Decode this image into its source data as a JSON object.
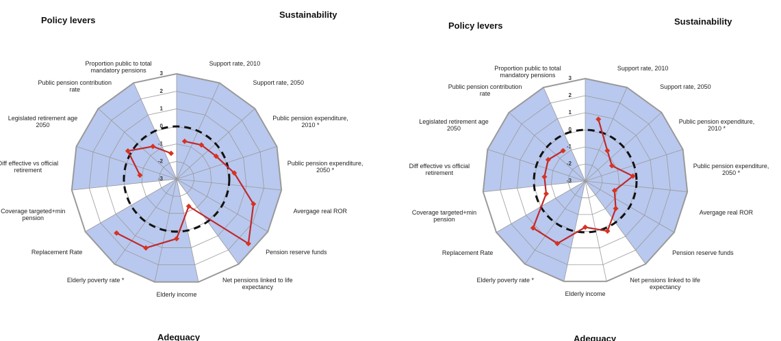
{
  "chart_data": [
    {
      "type": "radar",
      "group_labels": [
        "Policy levers",
        "Sustainability",
        "Adequacy"
      ],
      "categories": [
        "Support rate, 2010",
        "Support rate, 2050",
        "Public pension expenditure, 2010 *",
        "Public pension expenditure, 2050 *",
        "Avergage real ROR",
        "Pension reserve funds",
        "Net pensions linked to life expectancy",
        "Elderly income",
        "Elderly poverty rate *",
        "Replacement Rate",
        "Coverage targeted+min pension",
        "Diff effective vs official retirement",
        "Legislated retirement age 2050",
        "Public pension contribution rate",
        "Proportion public to total mandatory pensions"
      ],
      "values": [
        -0.8,
        -0.6,
        -0.4,
        0.3,
        1.6,
        2.5,
        -1.3,
        0.4,
        1.3,
        1.6,
        null,
        -0.9,
        0.2,
        -0.7,
        -1.5
      ],
      "sector_colors": [
        "#b9c8ee",
        "#b9c8ee",
        "#b9c8ee",
        "#b9c8ee",
        "#b9c8ee",
        "#b9c8ee",
        "#ffffff",
        "#b9c8ee",
        "#b9c8ee",
        "#b9c8ee",
        "#ffffff",
        "#b9c8ee",
        "#b9c8ee",
        "#b9c8ee",
        "#ffffff"
      ],
      "color": "#c0282c",
      "rlim": [
        -3,
        3
      ],
      "rticks": [
        -3,
        -2,
        -1,
        0,
        1,
        2,
        3
      ],
      "reference": 0
    },
    {
      "type": "radar",
      "group_labels": [
        "Policy levers",
        "Sustainability",
        "Adequacy"
      ],
      "categories": [
        "Support rate, 2010",
        "Support rate, 2050",
        "Public pension expenditure, 2010 *",
        "Public pension expenditure, 2050 *",
        "Avergage real ROR",
        "Pension reserve funds",
        "Net pensions linked to life expectancy",
        "Elderly income",
        "Elderly poverty rate *",
        "Replacement Rate",
        "Coverage targeted+min pension",
        "Diff effective vs official retirement",
        "Legislated retirement age 2050",
        "Public pension contribution rate",
        "Proportion public to total mandatory pensions"
      ],
      "values": [
        0.7,
        -0.8,
        -1.2,
        -0.2,
        -1.2,
        -0.6,
        0.2,
        -0.3,
        1.0,
        1.1,
        -0.6,
        -0.6,
        -0.5,
        -0.8,
        null
      ],
      "sector_colors": [
        "#b9c8ee",
        "#b9c8ee",
        "#b9c8ee",
        "#b9c8ee",
        "#b9c8ee",
        "#b9c8ee",
        "#ffffff",
        "#ffffff",
        "#b9c8ee",
        "#b9c8ee",
        "#ffffff",
        "#b9c8ee",
        "#b9c8ee",
        "#b9c8ee",
        "#ffffff"
      ],
      "color": "#c0282c",
      "rlim": [
        -3,
        3
      ],
      "rticks": [
        -3,
        -2,
        -1,
        0,
        1,
        2,
        3
      ],
      "reference": 0
    }
  ]
}
